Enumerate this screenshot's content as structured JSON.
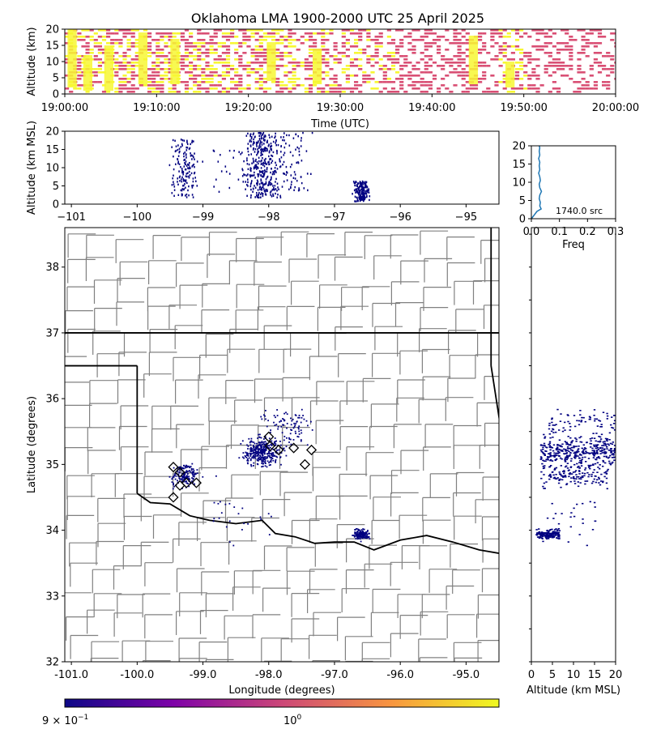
{
  "title": "Oklahoma LMA 1900-2000 UTC 25 April 2025",
  "colors": {
    "source": "#000080",
    "time_low": "#d94f74",
    "time_high": "#f7f733",
    "county": "#808080",
    "state": "#000000",
    "hist": "#1f77b4"
  },
  "chart_data": [
    {
      "id": "time_height",
      "type": "heatmap",
      "xlabel": "Time (UTC)",
      "ylabel": "Altitude (km)",
      "xlim_minutes": [
        0,
        60
      ],
      "ylim": [
        0,
        20
      ],
      "xticks": [
        {
          "v": 0,
          "label": "19:00:00"
        },
        {
          "v": 10,
          "label": "19:10:00"
        },
        {
          "v": 20,
          "label": "19:20:00"
        },
        {
          "v": 30,
          "label": "19:30:00"
        },
        {
          "v": 40,
          "label": "19:40:00"
        },
        {
          "v": 50,
          "label": "19:50:00"
        },
        {
          "v": 60,
          "label": "20:00:00"
        }
      ],
      "yticks": [
        0,
        5,
        10,
        15,
        20
      ]
    },
    {
      "id": "lon_alt",
      "type": "scatter",
      "ylabel": "Altitude (km MSL)",
      "xlim": [
        -101.1,
        -94.5
      ],
      "ylim": [
        0,
        20
      ],
      "xticks": [
        {
          "v": -101,
          "label": "−101"
        },
        {
          "v": -100,
          "label": "−100"
        },
        {
          "v": -99,
          "label": "−99"
        },
        {
          "v": -98,
          "label": "−98"
        },
        {
          "v": -97,
          "label": "−97"
        },
        {
          "v": -96,
          "label": "−96"
        },
        {
          "v": -95,
          "label": "−95"
        }
      ],
      "yticks": [
        0,
        5,
        10,
        15,
        20
      ]
    },
    {
      "id": "alt_hist",
      "type": "line",
      "xlabel": "Freq",
      "xlim": [
        0,
        0.3
      ],
      "ylim": [
        0,
        20
      ],
      "xticks": [
        {
          "v": 0,
          "label": "0.0"
        },
        {
          "v": 0.1,
          "label": "0.1"
        },
        {
          "v": 0.2,
          "label": "0.2"
        },
        {
          "v": 0.3,
          "label": "0.3"
        }
      ],
      "yticks": [
        0,
        5,
        10,
        15,
        20
      ],
      "annotation": "1740.0 src",
      "points": [
        [
          0.0,
          0
        ],
        [
          0.01,
          1
        ],
        [
          0.02,
          2
        ],
        [
          0.035,
          2.7
        ],
        [
          0.03,
          3.5
        ],
        [
          0.032,
          4.5
        ],
        [
          0.028,
          5.5
        ],
        [
          0.03,
          6.5
        ],
        [
          0.036,
          7.5
        ],
        [
          0.03,
          8.5
        ],
        [
          0.028,
          9.5
        ],
        [
          0.032,
          10.5
        ],
        [
          0.03,
          11.5
        ],
        [
          0.026,
          12.5
        ],
        [
          0.03,
          13.5
        ],
        [
          0.028,
          14.5
        ],
        [
          0.03,
          15.5
        ],
        [
          0.026,
          16.5
        ],
        [
          0.03,
          17.5
        ],
        [
          0.028,
          18.5
        ],
        [
          0.03,
          19.5
        ],
        [
          0.028,
          20
        ]
      ]
    },
    {
      "id": "plan_view",
      "type": "scatter",
      "xlabel": "Longitude (degrees)",
      "ylabel": "Latitude (degrees)",
      "xlim": [
        -101.1,
        -94.5
      ],
      "ylim": [
        32.0,
        38.6
      ],
      "xticks": [
        {
          "v": -101,
          "label": "-101.0"
        },
        {
          "v": -100,
          "label": "-100.0"
        },
        {
          "v": -99,
          "label": "-99.0"
        },
        {
          "v": -98,
          "label": "-98.0"
        },
        {
          "v": -97,
          "label": "-97.0"
        },
        {
          "v": -96,
          "label": "-96.0"
        },
        {
          "v": -95,
          "label": "-95.0"
        }
      ],
      "yticks": [
        32,
        33,
        34,
        35,
        36,
        37,
        38
      ],
      "stations": [
        [
          -98.0,
          35.42
        ],
        [
          -97.98,
          35.28
        ],
        [
          -97.85,
          35.22
        ],
        [
          -97.62,
          35.25
        ],
        [
          -97.35,
          35.22
        ],
        [
          -97.45,
          35.0
        ],
        [
          -99.45,
          34.96
        ],
        [
          -99.35,
          34.88
        ],
        [
          -99.25,
          34.72
        ],
        [
          -99.35,
          34.68
        ],
        [
          -99.1,
          34.72
        ],
        [
          -99.45,
          34.5
        ]
      ]
    },
    {
      "id": "alt_lat",
      "type": "scatter",
      "xlabel": "Altitude (km MSL)",
      "xlim": [
        0,
        20
      ],
      "ylim": [
        32.0,
        38.6
      ],
      "xticks": [
        0,
        5,
        10,
        15,
        20
      ]
    }
  ],
  "colorbar": {
    "label_left": "9 × 10",
    "label_left_exp": "−1",
    "label_mid": "10",
    "label_mid_exp": "0"
  }
}
